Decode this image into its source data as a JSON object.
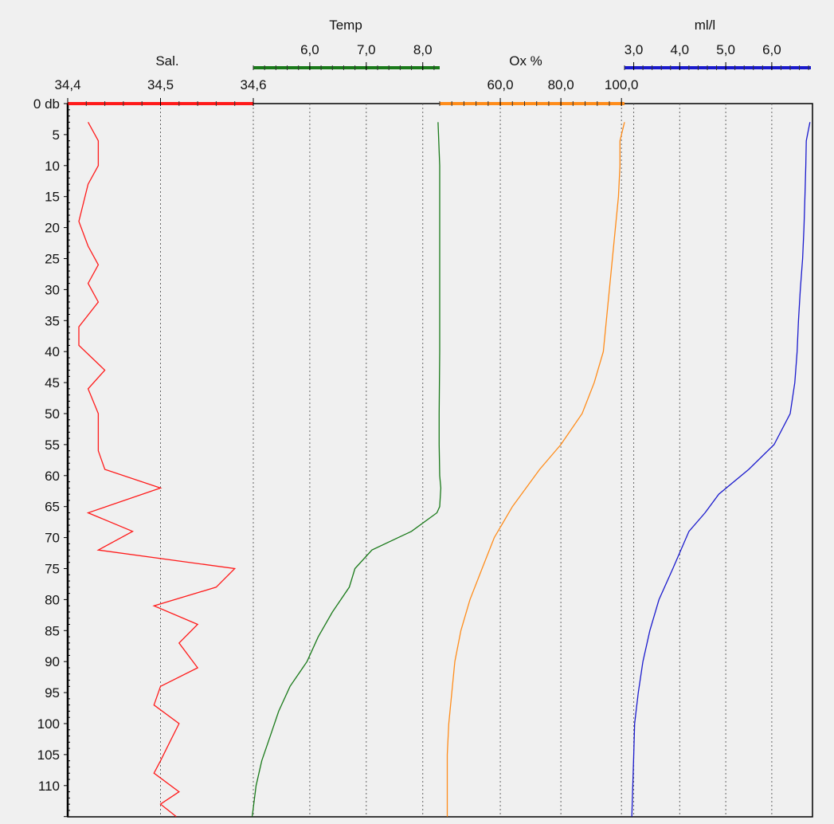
{
  "chart_data": {
    "type": "line",
    "ylabel": "db",
    "y_axis": {
      "ylim": [
        0,
        115
      ],
      "ticks": [
        0,
        5,
        10,
        15,
        20,
        25,
        30,
        35,
        40,
        45,
        50,
        55,
        60,
        65,
        70,
        75,
        80,
        85,
        90,
        95,
        100,
        105,
        110
      ],
      "tick_labels": [
        "0 db",
        "5",
        "10",
        "15",
        "20",
        "25",
        "30",
        "35",
        "40",
        "45",
        "50",
        "55",
        "60",
        "65",
        "70",
        "75",
        "80",
        "85",
        "90",
        "95",
        "100",
        "105",
        "110"
      ],
      "inverted": true
    },
    "grid": true,
    "axes": [
      {
        "title": "Sal.",
        "color": "#ff1a1a",
        "range": [
          34.4,
          34.6
        ],
        "ticks": [
          34.4,
          34.5,
          34.6
        ],
        "tick_labels": [
          "34,4",
          "34,5",
          "34,6"
        ],
        "series": {
          "y": [
            3,
            6,
            10,
            13,
            19,
            23,
            26,
            29,
            32,
            36,
            39,
            43,
            46,
            50,
            56,
            59,
            62,
            66,
            69,
            72,
            75,
            78,
            81,
            84,
            87,
            91,
            94,
            97,
            100,
            103,
            106,
            108,
            111,
            113,
            115
          ],
          "x": [
            34.422,
            34.433,
            34.433,
            34.422,
            34.412,
            34.422,
            34.433,
            34.422,
            34.433,
            34.412,
            34.412,
            34.44,
            34.422,
            34.433,
            34.433,
            34.44,
            34.5,
            34.422,
            34.47,
            34.433,
            34.58,
            34.56,
            34.493,
            34.54,
            34.52,
            34.54,
            34.5,
            34.493,
            34.52,
            34.51,
            34.5,
            34.493,
            34.52,
            34.5,
            34.517
          ]
        }
      },
      {
        "title": "Temp",
        "color": "#1a7a1a",
        "range": [
          5.0,
          8.3
        ],
        "ticks": [
          6.0,
          7.0,
          8.0
        ],
        "tick_labels": [
          "6,0",
          "7,0",
          "8,0"
        ],
        "series": {
          "y": [
            3,
            10,
            20,
            30,
            40,
            50,
            55,
            60,
            62,
            65,
            66,
            69,
            72,
            75,
            78,
            82,
            86,
            90,
            94,
            98,
            102,
            106,
            110,
            115
          ],
          "x": [
            8.27,
            8.3,
            8.3,
            8.3,
            8.3,
            8.29,
            8.29,
            8.3,
            8.32,
            8.3,
            8.25,
            7.8,
            7.1,
            6.8,
            6.7,
            6.4,
            6.15,
            5.95,
            5.65,
            5.45,
            5.3,
            5.15,
            5.05,
            4.98
          ]
        }
      },
      {
        "title": "Ox %",
        "color": "#ff8c1a",
        "range": [
          40,
          101
        ],
        "ticks": [
          60.0,
          80.0,
          100.0
        ],
        "tick_labels": [
          "60,0",
          "80,0",
          "100,0"
        ],
        "series": {
          "y": [
            3,
            6,
            10,
            15,
            20,
            25,
            30,
            35,
            40,
            45,
            50,
            55,
            59,
            65,
            70,
            75,
            80,
            85,
            90,
            95,
            100,
            105,
            110,
            115
          ],
          "x": [
            101,
            99.5,
            99.5,
            99.0,
            98.0,
            97.0,
            96.0,
            95.0,
            94.0,
            91.0,
            87.0,
            80.0,
            73.0,
            64.0,
            58.0,
            54.0,
            50.0,
            47.0,
            45.0,
            44.0,
            43.0,
            42.5,
            42.5,
            42.5
          ]
        }
      },
      {
        "title": "ml/l",
        "color": "#1a1acd",
        "range": [
          2.8,
          6.85
        ],
        "ticks": [
          3.0,
          4.0,
          5.0,
          6.0
        ],
        "tick_labels": [
          "3,0",
          "4,0",
          "5,0",
          "6,0"
        ],
        "series": {
          "y": [
            3,
            6,
            10,
            15,
            20,
            25,
            30,
            35,
            40,
            45,
            50,
            55,
            59,
            63,
            66,
            69,
            75,
            80,
            85,
            90,
            95,
            100,
            105,
            110,
            115
          ],
          "x": [
            6.83,
            6.75,
            6.74,
            6.72,
            6.7,
            6.67,
            6.62,
            6.58,
            6.55,
            6.5,
            6.4,
            6.05,
            5.5,
            4.85,
            4.55,
            4.2,
            3.85,
            3.55,
            3.35,
            3.2,
            3.1,
            3.02,
            3.0,
            2.98,
            2.96
          ]
        }
      }
    ]
  }
}
